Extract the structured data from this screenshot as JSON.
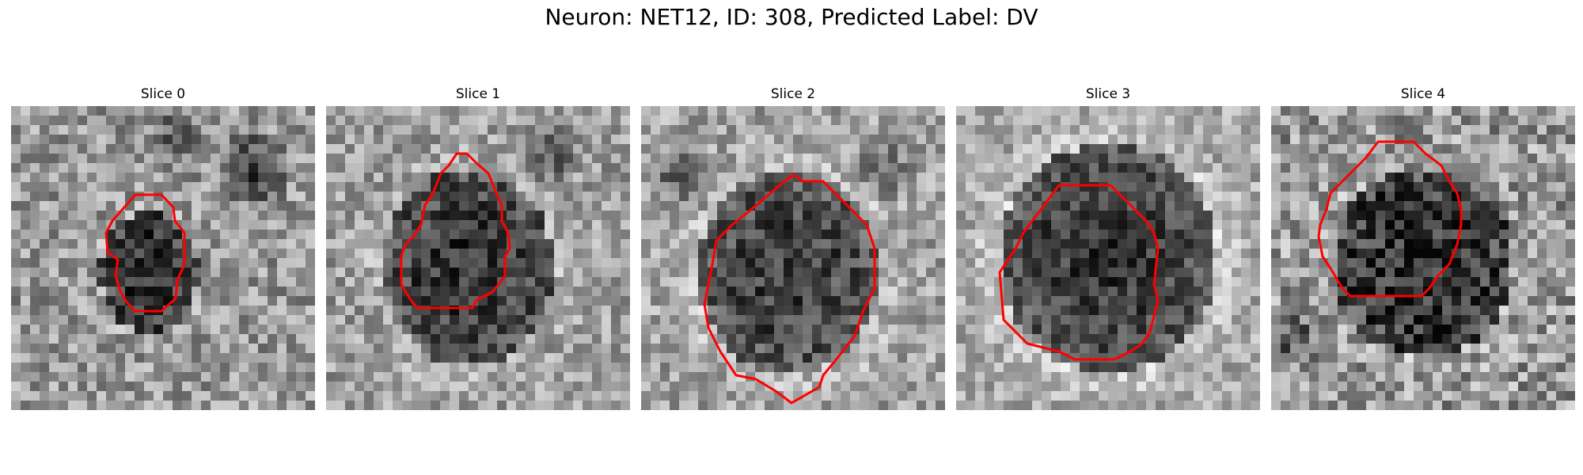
{
  "figure": {
    "title": "Neuron: NET12, ID: 308, Predicted Label: DV",
    "contour_color": "#ff0000",
    "colormap": "grayscale"
  },
  "slices": [
    {
      "title": "Slice 0"
    },
    {
      "title": "Slice 1"
    },
    {
      "title": "Slice 2"
    },
    {
      "title": "Slice 3"
    },
    {
      "title": "Slice 4"
    }
  ]
}
